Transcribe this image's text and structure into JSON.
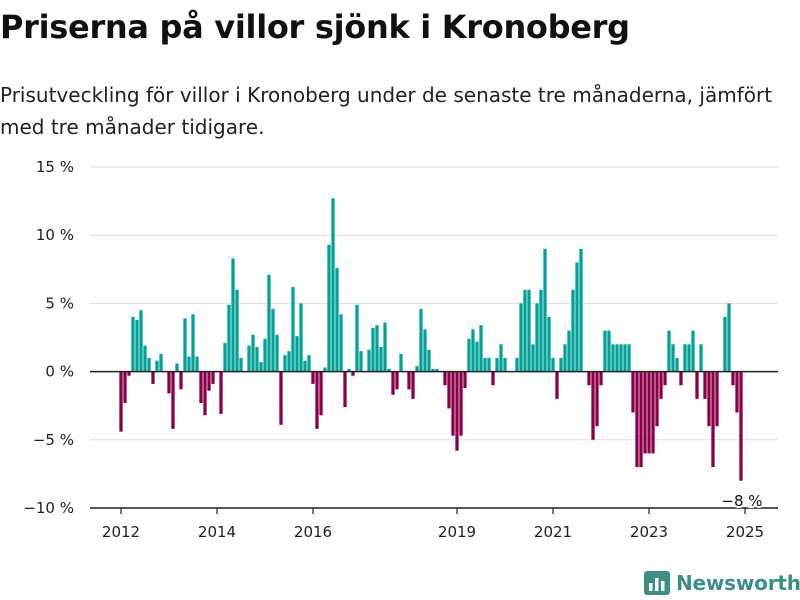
{
  "title": "Priserna på villor sjönk i Kronoberg",
  "subtitle": "Prisutveckling för villor i Kronoberg under de senaste tre månaderna, jämfört med tre månader tidigare.",
  "brand": {
    "name": "Newsworthy",
    "color": "#3a8f86"
  },
  "colors": {
    "positive": "#00a396",
    "negative": "#8b0046",
    "grid": "#dddddd",
    "axis": "#222222"
  },
  "chart_data": {
    "type": "bar",
    "ylim": [
      -10,
      15
    ],
    "yticks": [
      {
        "value": 15,
        "label": "15 %"
      },
      {
        "value": 10,
        "label": "10 %"
      },
      {
        "value": 5,
        "label": "5 %"
      },
      {
        "value": 0,
        "label": "0 %"
      },
      {
        "value": -5,
        "label": "−5 %"
      },
      {
        "value": -10,
        "label": "−10 %"
      }
    ],
    "xticks": [
      {
        "date": "2012-01",
        "label": "2012"
      },
      {
        "date": "2014-01",
        "label": "2014"
      },
      {
        "date": "2016-01",
        "label": "2016"
      },
      {
        "date": "2019-01",
        "label": "2019"
      },
      {
        "date": "2021-01",
        "label": "2021"
      },
      {
        "date": "2023-01",
        "label": "2023"
      },
      {
        "date": "2025-01",
        "label": "2025"
      }
    ],
    "annotation": {
      "date": "2024-12",
      "label": "−8 %"
    },
    "series": [
      {
        "values": [
          {
            "date": "2012-01",
            "value": -4.4
          },
          {
            "date": "2012-02",
            "value": -2.3
          },
          {
            "date": "2012-03",
            "value": -0.3
          },
          {
            "date": "2012-04",
            "value": 4.0
          },
          {
            "date": "2012-05",
            "value": 3.8
          },
          {
            "date": "2012-06",
            "value": 4.5
          },
          {
            "date": "2012-07",
            "value": 1.9
          },
          {
            "date": "2012-08",
            "value": 1.0
          },
          {
            "date": "2012-09",
            "value": -0.9
          },
          {
            "date": "2012-10",
            "value": 0.8
          },
          {
            "date": "2012-11",
            "value": 1.3
          },
          {
            "date": "2012-12",
            "value": 0.0
          },
          {
            "date": "2013-01",
            "value": -1.6
          },
          {
            "date": "2013-02",
            "value": -4.2
          },
          {
            "date": "2013-03",
            "value": 0.6
          },
          {
            "date": "2013-04",
            "value": -1.3
          },
          {
            "date": "2013-05",
            "value": 3.9
          },
          {
            "date": "2013-06",
            "value": 1.1
          },
          {
            "date": "2013-07",
            "value": 4.2
          },
          {
            "date": "2013-08",
            "value": 1.1
          },
          {
            "date": "2013-09",
            "value": -2.3
          },
          {
            "date": "2013-10",
            "value": -3.2
          },
          {
            "date": "2013-11",
            "value": -1.4
          },
          {
            "date": "2013-12",
            "value": -0.9
          },
          {
            "date": "2014-01",
            "value": 0.0
          },
          {
            "date": "2014-02",
            "value": -3.1
          },
          {
            "date": "2014-03",
            "value": 2.1
          },
          {
            "date": "2014-04",
            "value": 4.9
          },
          {
            "date": "2014-05",
            "value": 8.3
          },
          {
            "date": "2014-06",
            "value": 6.0
          },
          {
            "date": "2014-07",
            "value": 1.0
          },
          {
            "date": "2014-08",
            "value": 0.0
          },
          {
            "date": "2014-09",
            "value": 1.9
          },
          {
            "date": "2014-10",
            "value": 2.7
          },
          {
            "date": "2014-11",
            "value": 1.8
          },
          {
            "date": "2014-12",
            "value": 0.7
          },
          {
            "date": "2015-01",
            "value": 2.4
          },
          {
            "date": "2015-02",
            "value": 7.1
          },
          {
            "date": "2015-03",
            "value": 4.6
          },
          {
            "date": "2015-04",
            "value": 2.7
          },
          {
            "date": "2015-05",
            "value": -3.9
          },
          {
            "date": "2015-06",
            "value": 1.2
          },
          {
            "date": "2015-07",
            "value": 1.5
          },
          {
            "date": "2015-08",
            "value": 6.2
          },
          {
            "date": "2015-09",
            "value": 2.6
          },
          {
            "date": "2015-10",
            "value": 5.0
          },
          {
            "date": "2015-11",
            "value": 0.8
          },
          {
            "date": "2015-12",
            "value": 1.2
          },
          {
            "date": "2016-01",
            "value": -0.9
          },
          {
            "date": "2016-02",
            "value": -4.2
          },
          {
            "date": "2016-03",
            "value": -3.2
          },
          {
            "date": "2016-04",
            "value": 0.3
          },
          {
            "date": "2016-05",
            "value": 9.3
          },
          {
            "date": "2016-06",
            "value": 12.7
          },
          {
            "date": "2016-07",
            "value": 7.6
          },
          {
            "date": "2016-08",
            "value": 4.2
          },
          {
            "date": "2016-09",
            "value": -2.6
          },
          {
            "date": "2016-10",
            "value": 0.2
          },
          {
            "date": "2016-11",
            "value": -0.3
          },
          {
            "date": "2016-12",
            "value": 4.9
          },
          {
            "date": "2017-01",
            "value": 1.5
          },
          {
            "date": "2017-02",
            "value": 0.0
          },
          {
            "date": "2017-03",
            "value": 1.6
          },
          {
            "date": "2017-04",
            "value": 3.2
          },
          {
            "date": "2017-05",
            "value": 3.4
          },
          {
            "date": "2017-06",
            "value": 1.8
          },
          {
            "date": "2017-07",
            "value": 3.6
          },
          {
            "date": "2017-08",
            "value": 0.2
          },
          {
            "date": "2017-09",
            "value": -1.7
          },
          {
            "date": "2017-10",
            "value": -1.3
          },
          {
            "date": "2017-11",
            "value": 1.3
          },
          {
            "date": "2017-12",
            "value": 0.0
          },
          {
            "date": "2018-01",
            "value": -1.3
          },
          {
            "date": "2018-02",
            "value": -2.0
          },
          {
            "date": "2018-03",
            "value": 0.4
          },
          {
            "date": "2018-04",
            "value": 4.6
          },
          {
            "date": "2018-05",
            "value": 3.1
          },
          {
            "date": "2018-06",
            "value": 1.6
          },
          {
            "date": "2018-07",
            "value": 0.2
          },
          {
            "date": "2018-08",
            "value": 0.2
          },
          {
            "date": "2018-09",
            "value": 0.0
          },
          {
            "date": "2018-10",
            "value": -1.0
          },
          {
            "date": "2018-11",
            "value": -2.7
          },
          {
            "date": "2018-12",
            "value": -4.7
          },
          {
            "date": "2019-01",
            "value": -5.8
          },
          {
            "date": "2019-02",
            "value": -4.7
          },
          {
            "date": "2019-03",
            "value": -1.2
          },
          {
            "date": "2019-04",
            "value": 2.4
          },
          {
            "date": "2019-05",
            "value": 3.1
          },
          {
            "date": "2019-06",
            "value": 2.2
          },
          {
            "date": "2019-07",
            "value": 3.4
          },
          {
            "date": "2019-08",
            "value": 1.0
          },
          {
            "date": "2019-09",
            "value": 1.0
          },
          {
            "date": "2019-10",
            "value": -1.0
          },
          {
            "date": "2019-11",
            "value": 1.0
          },
          {
            "date": "2019-12",
            "value": 2.0
          },
          {
            "date": "2020-01",
            "value": 1.0
          },
          {
            "date": "2020-02",
            "value": 0.0
          },
          {
            "date": "2020-03",
            "value": 0.0
          },
          {
            "date": "2020-04",
            "value": 1.0
          },
          {
            "date": "2020-05",
            "value": 5.0
          },
          {
            "date": "2020-06",
            "value": 6.0
          },
          {
            "date": "2020-07",
            "value": 6.0
          },
          {
            "date": "2020-08",
            "value": 2.0
          },
          {
            "date": "2020-09",
            "value": 5.0
          },
          {
            "date": "2020-10",
            "value": 6.0
          },
          {
            "date": "2020-11",
            "value": 9.0
          },
          {
            "date": "2020-12",
            "value": 4.0
          },
          {
            "date": "2021-01",
            "value": 1.0
          },
          {
            "date": "2021-02",
            "value": -2.0
          },
          {
            "date": "2021-03",
            "value": 1.0
          },
          {
            "date": "2021-04",
            "value": 2.0
          },
          {
            "date": "2021-05",
            "value": 3.0
          },
          {
            "date": "2021-06",
            "value": 6.0
          },
          {
            "date": "2021-07",
            "value": 8.0
          },
          {
            "date": "2021-08",
            "value": 9.0
          },
          {
            "date": "2021-09",
            "value": 0.0
          },
          {
            "date": "2021-10",
            "value": -1.0
          },
          {
            "date": "2021-11",
            "value": -5.0
          },
          {
            "date": "2021-12",
            "value": -4.0
          },
          {
            "date": "2022-01",
            "value": -1.0
          },
          {
            "date": "2022-02",
            "value": 3.0
          },
          {
            "date": "2022-03",
            "value": 3.0
          },
          {
            "date": "2022-04",
            "value": 2.0
          },
          {
            "date": "2022-05",
            "value": 2.0
          },
          {
            "date": "2022-06",
            "value": 2.0
          },
          {
            "date": "2022-07",
            "value": 2.0
          },
          {
            "date": "2022-08",
            "value": 2.0
          },
          {
            "date": "2022-09",
            "value": -3.0
          },
          {
            "date": "2022-10",
            "value": -7.0
          },
          {
            "date": "2022-11",
            "value": -7.0
          },
          {
            "date": "2022-12",
            "value": -6.0
          },
          {
            "date": "2023-01",
            "value": -6.0
          },
          {
            "date": "2023-02",
            "value": -6.0
          },
          {
            "date": "2023-03",
            "value": -4.0
          },
          {
            "date": "2023-04",
            "value": -2.0
          },
          {
            "date": "2023-05",
            "value": -1.0
          },
          {
            "date": "2023-06",
            "value": 3.0
          },
          {
            "date": "2023-07",
            "value": 2.0
          },
          {
            "date": "2023-08",
            "value": 1.0
          },
          {
            "date": "2023-09",
            "value": -1.0
          },
          {
            "date": "2023-10",
            "value": 2.0
          },
          {
            "date": "2023-11",
            "value": 2.0
          },
          {
            "date": "2023-12",
            "value": 3.0
          },
          {
            "date": "2024-01",
            "value": -2.0
          },
          {
            "date": "2024-02",
            "value": 2.0
          },
          {
            "date": "2024-03",
            "value": -2.0
          },
          {
            "date": "2024-04",
            "value": -4.0
          },
          {
            "date": "2024-05",
            "value": -7.0
          },
          {
            "date": "2024-06",
            "value": -4.0
          },
          {
            "date": "2024-07",
            "value": 0.0
          },
          {
            "date": "2024-08",
            "value": 4.0
          },
          {
            "date": "2024-09",
            "value": 5.0
          },
          {
            "date": "2024-10",
            "value": -1.0
          },
          {
            "date": "2024-11",
            "value": -3.0
          },
          {
            "date": "2024-12",
            "value": -8.0
          }
        ]
      }
    ]
  }
}
